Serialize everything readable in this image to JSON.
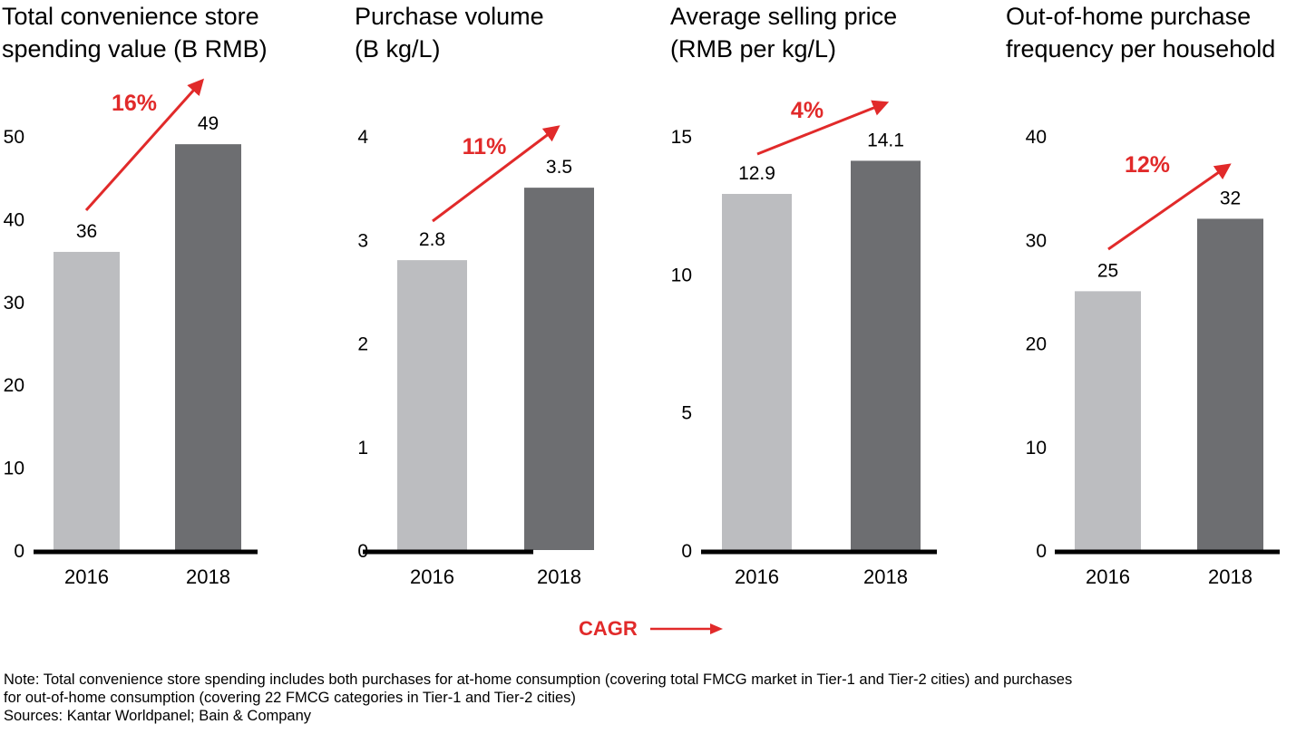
{
  "colors": {
    "bar_2016": "#bcbdc0",
    "bar_2018": "#6d6e71",
    "accent": "#e12a2a",
    "axis": "#000000"
  },
  "chart_data": [
    {
      "type": "bar",
      "title": "Total convenience store spending value (B RMB)",
      "title_lines": [
        "Total convenience store",
        "spending value (B RMB)"
      ],
      "categories": [
        "2016",
        "2018"
      ],
      "values": [
        36,
        49
      ],
      "value_labels": [
        "36",
        "49"
      ],
      "yticks": [
        0,
        10,
        20,
        30,
        40,
        50
      ],
      "ylim": [
        0,
        50
      ],
      "cagr": "16%",
      "xlabel": "",
      "ylabel": "",
      "grid": false
    },
    {
      "type": "bar",
      "title": "Purchase volume (B kg/L)",
      "title_lines": [
        "Purchase volume",
        "(B kg/L)"
      ],
      "categories": [
        "2016",
        "2018"
      ],
      "values": [
        2.8,
        3.5
      ],
      "value_labels": [
        "2.8",
        "3.5"
      ],
      "yticks": [
        0,
        1,
        2,
        3,
        4
      ],
      "ylim": [
        0,
        4
      ],
      "cagr": "11%",
      "xlabel": "",
      "ylabel": "",
      "grid": false
    },
    {
      "type": "bar",
      "title": "Average selling price (RMB per kg/L)",
      "title_lines": [
        "Average selling price",
        "(RMB per kg/L)"
      ],
      "categories": [
        "2016",
        "2018"
      ],
      "values": [
        12.9,
        14.1
      ],
      "value_labels": [
        "12.9",
        "14.1"
      ],
      "yticks": [
        0,
        5,
        10,
        15
      ],
      "ylim": [
        0,
        15
      ],
      "cagr": "4%",
      "xlabel": "",
      "ylabel": "",
      "grid": false
    },
    {
      "type": "bar",
      "title": "Out-of-home purchase frequency per household",
      "title_lines": [
        "Out-of-home purchase",
        "frequency per household"
      ],
      "categories": [
        "2016",
        "2018"
      ],
      "values": [
        25,
        32
      ],
      "value_labels": [
        "25",
        "32"
      ],
      "yticks": [
        0,
        10,
        20,
        30,
        40
      ],
      "ylim": [
        0,
        40
      ],
      "cagr": "12%",
      "xlabel": "",
      "ylabel": "",
      "grid": false
    }
  ],
  "legend": {
    "label": "CAGR",
    "icon": "right-arrow-icon"
  },
  "notes": {
    "note_line1": "Note: Total convenience store spending includes both purchases for at-home consumption (covering total FMCG market in Tier-1 and Tier-2 cities) and purchases",
    "note_line2": "for out-of-home consumption (covering 22 FMCG categories in Tier-1 and Tier-2 cities)",
    "sources": "Sources: Kantar Worldpanel; Bain & Company"
  }
}
